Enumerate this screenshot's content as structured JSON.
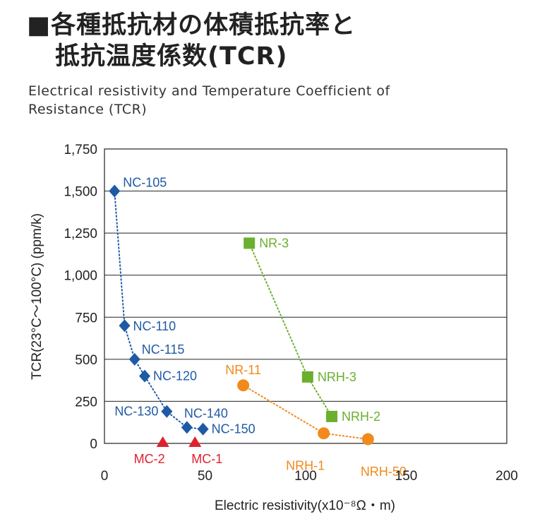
{
  "heading": {
    "title_line1": "■各種抵抗材の体積抵抗率と",
    "title_line2": "抵抗温度係数(TCR)",
    "subtitle": "Electrical resistivity and Temperature Coefficient of Resistance (TCR)"
  },
  "chart_data": {
    "type": "scatter",
    "xlabel": "Electric resistivity(x10⁻⁸Ω・m)",
    "ylabel": "TCR(23°C～100°C) (ppm/k)",
    "xlim": [
      0,
      200
    ],
    "ylim": [
      0,
      1750
    ],
    "xticks": [
      0,
      50,
      100,
      150,
      200
    ],
    "xtick_labels": [
      "0",
      "50",
      "100",
      "150",
      "200"
    ],
    "yticks": [
      0,
      250,
      500,
      750,
      1000,
      1250,
      1500,
      1750
    ],
    "ytick_labels": [
      "0",
      "250",
      "500",
      "750",
      "1,000",
      "1,250",
      "1,500",
      "1,750"
    ],
    "grid": "horizontal",
    "series": [
      {
        "marker": "diamond",
        "color": "#1f5aa6",
        "connected": true,
        "points": [
          {
            "label": "NC-105",
            "x": 5,
            "y": 1500
          },
          {
            "label": "NC-110",
            "x": 10,
            "y": 700
          },
          {
            "label": "NC-115",
            "x": 15,
            "y": 500
          },
          {
            "label": "NC-120",
            "x": 20,
            "y": 400
          },
          {
            "label": "NC-130",
            "x": 31,
            "y": 190
          },
          {
            "label": "NC-140",
            "x": 41,
            "y": 95
          },
          {
            "label": "NC-150",
            "x": 49,
            "y": 85
          }
        ]
      },
      {
        "marker": "square",
        "color": "#6aaf2e",
        "connected": true,
        "points": [
          {
            "label": "NR-3",
            "x": 72,
            "y": 1190
          },
          {
            "label": "NRH-3",
            "x": 101,
            "y": 395
          },
          {
            "label": "NRH-2",
            "x": 113,
            "y": 160
          }
        ]
      },
      {
        "marker": "circle",
        "color": "#f08a1c",
        "connected": true,
        "points": [
          {
            "label": "NR-11",
            "x": 69,
            "y": 345
          },
          {
            "label": "NRH-1",
            "x": 109,
            "y": 60
          },
          {
            "label": "NRH-50",
            "x": 131,
            "y": 25
          }
        ]
      },
      {
        "marker": "triangle",
        "color": "#e0202e",
        "connected": false,
        "points": [
          {
            "label": "MC-2",
            "x": 29,
            "y": 0
          },
          {
            "label": "MC-1",
            "x": 45,
            "y": 0
          }
        ]
      }
    ]
  }
}
